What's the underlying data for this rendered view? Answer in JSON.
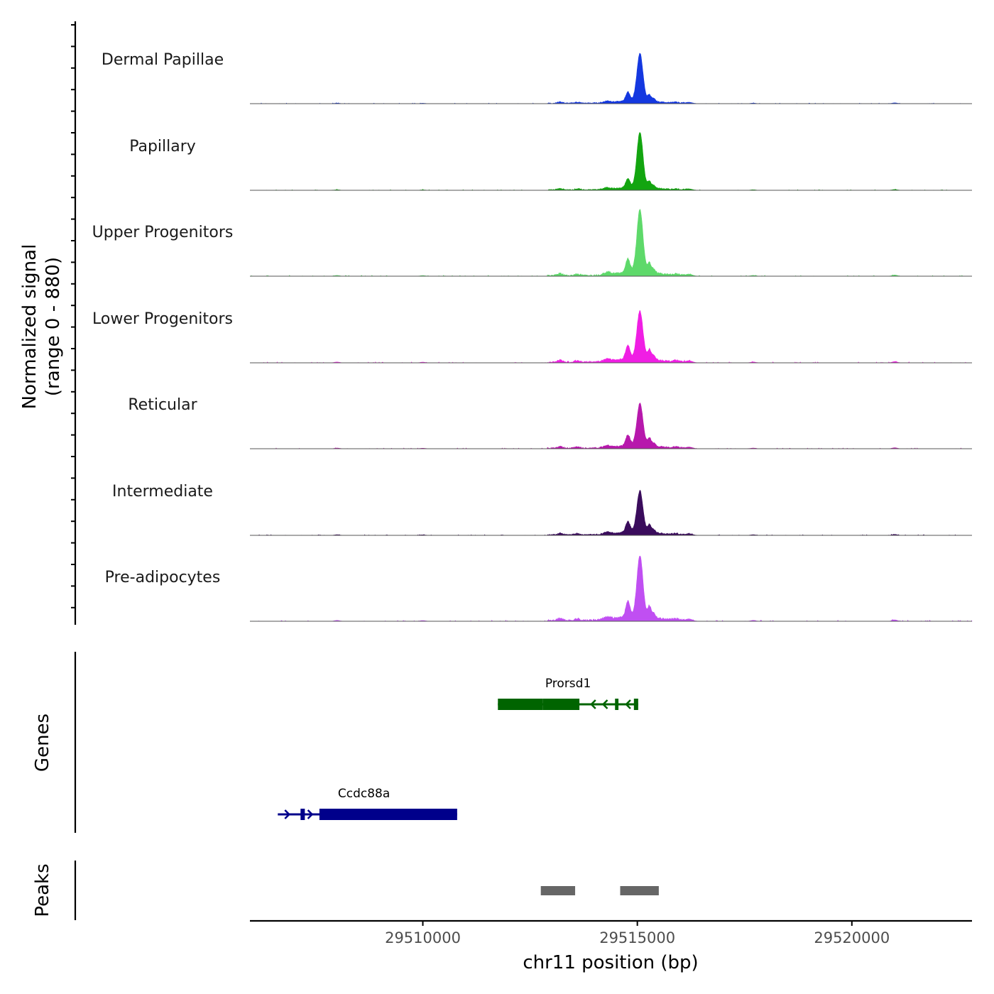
{
  "chart_data": {
    "type": "area",
    "chromosome": "chr11",
    "xlabel": "chr11 position (bp)",
    "ylabel": "Normalized signal",
    "ylabel_range": "(range 0 - 880)",
    "y_range": [
      0,
      880
    ],
    "xlim": [
      29505970,
      29522800
    ],
    "x_ticks": [
      {
        "value": 29510000,
        "label": "29510000"
      },
      {
        "value": 29515000,
        "label": "29515000"
      },
      {
        "value": 29520000,
        "label": "29520000"
      }
    ],
    "series": [
      {
        "name": "Dermal Papillae",
        "color": "#1438e0",
        "peak_height": 0.9,
        "side_scale": 1.0
      },
      {
        "name": "Papillary",
        "color": "#13a510",
        "peak_height": 1.05,
        "side_scale": 1.0
      },
      {
        "name": "Upper Progenitors",
        "color": "#5ed96a",
        "peak_height": 1.18,
        "side_scale": 1.5
      },
      {
        "name": "Lower Progenitors",
        "color": "#f01ee4",
        "peak_height": 0.9,
        "side_scale": 1.5
      },
      {
        "name": "Reticular",
        "color": "#b718ac",
        "peak_height": 0.8,
        "side_scale": 1.2
      },
      {
        "name": "Intermediate",
        "color": "#3a0c5c",
        "peak_height": 0.78,
        "side_scale": 1.2
      },
      {
        "name": "Pre-adipocytes",
        "color": "#c04ff2",
        "peak_height": 1.15,
        "side_scale": 1.7
      }
    ],
    "signal_features": [
      {
        "pos": 29515060,
        "height": 1.0,
        "width": 70
      },
      {
        "pos": 29514780,
        "height": 0.17,
        "width": 50
      },
      {
        "pos": 29515280,
        "height": 0.12,
        "width": 40
      },
      {
        "pos": 29515380,
        "height": 0.05,
        "width": 40
      },
      {
        "pos": 29515000,
        "height": 0.05,
        "width": 450
      },
      {
        "pos": 29513200,
        "height": 0.025,
        "width": 60
      },
      {
        "pos": 29513600,
        "height": 0.02,
        "width": 60
      },
      {
        "pos": 29514300,
        "height": 0.03,
        "width": 80
      },
      {
        "pos": 29516200,
        "height": 0.025,
        "width": 80
      },
      {
        "pos": 29515900,
        "height": 0.015,
        "width": 60
      },
      {
        "pos": 29521000,
        "height": 0.015,
        "width": 60
      },
      {
        "pos": 29517700,
        "height": 0.01,
        "width": 60
      },
      {
        "pos": 29508000,
        "height": 0.01,
        "width": 60
      },
      {
        "pos": 29510000,
        "height": 0.008,
        "width": 60
      }
    ],
    "genes_track": {
      "label": "Genes",
      "genes": [
        {
          "name": "Prorsd1",
          "color": "#006400",
          "strand": "-",
          "start": 29511750,
          "end": 29515020,
          "exons": [
            [
              29511750,
              29512800
            ],
            [
              29512800,
              29513650
            ],
            [
              29514480,
              29514560
            ],
            [
              29514920,
              29515020
            ]
          ]
        },
        {
          "name": "Ccdc88a",
          "color": "#00008b",
          "strand": "+",
          "start": 29506620,
          "end": 29510800,
          "exons": [
            [
              29507150,
              29507250
            ],
            [
              29507590,
              29510800
            ]
          ]
        }
      ]
    },
    "peaks_track": {
      "label": "Peaks",
      "color": "#666666",
      "peaks": [
        [
          29512750,
          29513550
        ],
        [
          29514600,
          29515500
        ]
      ]
    }
  }
}
